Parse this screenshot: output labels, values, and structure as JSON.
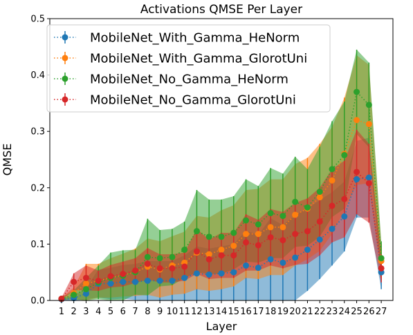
{
  "chart_data": {
    "type": "line",
    "title": "Activations QMSE Per Layer",
    "xlabel": "Layer",
    "ylabel": "QMSE",
    "ylim": [
      0,
      0.5
    ],
    "yticks": [
      "0.0",
      "0.1",
      "0.2",
      "0.3",
      "0.4",
      "0.5"
    ],
    "x": [
      1,
      2,
      3,
      4,
      5,
      6,
      7,
      8,
      9,
      10,
      11,
      12,
      13,
      14,
      15,
      16,
      17,
      18,
      19,
      20,
      21,
      22,
      23,
      24,
      25,
      26,
      27
    ],
    "legend_position": "upper-left",
    "grid": false,
    "series": [
      {
        "name": "MobileNet_With_Gamma_HeNorm",
        "color": "#1f77b4",
        "values": [
          0.002,
          0.004,
          0.012,
          0.03,
          0.03,
          0.033,
          0.033,
          0.035,
          0.035,
          0.035,
          0.04,
          0.048,
          0.046,
          0.048,
          0.05,
          0.062,
          0.058,
          0.073,
          0.067,
          0.076,
          0.09,
          0.108,
          0.127,
          0.149,
          0.215,
          0.218,
          0.05
        ],
        "errors": [
          0.002,
          0.004,
          0.01,
          0.025,
          0.028,
          0.03,
          0.032,
          0.035,
          0.035,
          0.035,
          0.04,
          0.048,
          0.046,
          0.048,
          0.05,
          0.062,
          0.058,
          0.073,
          0.067,
          0.076,
          0.073,
          0.07,
          0.065,
          0.062,
          0.068,
          0.071,
          0.03
        ]
      },
      {
        "name": "MobileNet_With_Gamma_GlorotUni",
        "color": "#ff7f0e",
        "values": [
          0.003,
          0.013,
          0.03,
          0.035,
          0.04,
          0.045,
          0.05,
          0.06,
          0.055,
          0.062,
          0.067,
          0.085,
          0.082,
          0.09,
          0.097,
          0.118,
          0.118,
          0.13,
          0.13,
          0.152,
          0.163,
          0.183,
          0.213,
          0.26,
          0.32,
          0.313,
          0.07
        ],
        "errors": [
          0.002,
          0.01,
          0.035,
          0.03,
          0.035,
          0.038,
          0.042,
          0.05,
          0.05,
          0.052,
          0.055,
          0.065,
          0.065,
          0.07,
          0.072,
          0.078,
          0.08,
          0.085,
          0.085,
          0.09,
          0.09,
          0.095,
          0.095,
          0.1,
          0.115,
          0.105,
          0.03
        ]
      },
      {
        "name": "MobileNet_No_Gamma_HeNorm",
        "color": "#2ca02c",
        "values": [
          0.003,
          0.01,
          0.02,
          0.032,
          0.04,
          0.044,
          0.05,
          0.077,
          0.075,
          0.077,
          0.09,
          0.123,
          0.113,
          0.113,
          0.12,
          0.142,
          0.135,
          0.155,
          0.15,
          0.175,
          0.165,
          0.193,
          0.233,
          0.258,
          0.37,
          0.347,
          0.075
        ],
        "errors": [
          0.002,
          0.008,
          0.02,
          0.03,
          0.045,
          0.045,
          0.04,
          0.068,
          0.05,
          0.05,
          0.05,
          0.073,
          0.066,
          0.066,
          0.065,
          0.073,
          0.068,
          0.08,
          0.075,
          0.08,
          0.068,
          0.08,
          0.085,
          0.095,
          0.075,
          0.075,
          0.03
        ]
      },
      {
        "name": "MobileNet_No_Gamma_GlorotUni",
        "color": "#d62728",
        "values": [
          0.003,
          0.033,
          0.04,
          0.035,
          0.043,
          0.047,
          0.053,
          0.065,
          0.057,
          0.057,
          0.06,
          0.087,
          0.073,
          0.08,
          0.08,
          0.103,
          0.098,
          0.112,
          0.107,
          0.118,
          0.123,
          0.14,
          0.168,
          0.18,
          0.228,
          0.208,
          0.057
        ],
        "errors": [
          0.002,
          0.015,
          0.022,
          0.018,
          0.02,
          0.022,
          0.022,
          0.028,
          0.025,
          0.025,
          0.025,
          0.04,
          0.035,
          0.04,
          0.04,
          0.05,
          0.045,
          0.05,
          0.05,
          0.055,
          0.058,
          0.06,
          0.065,
          0.068,
          0.075,
          0.07,
          0.025
        ]
      }
    ]
  }
}
